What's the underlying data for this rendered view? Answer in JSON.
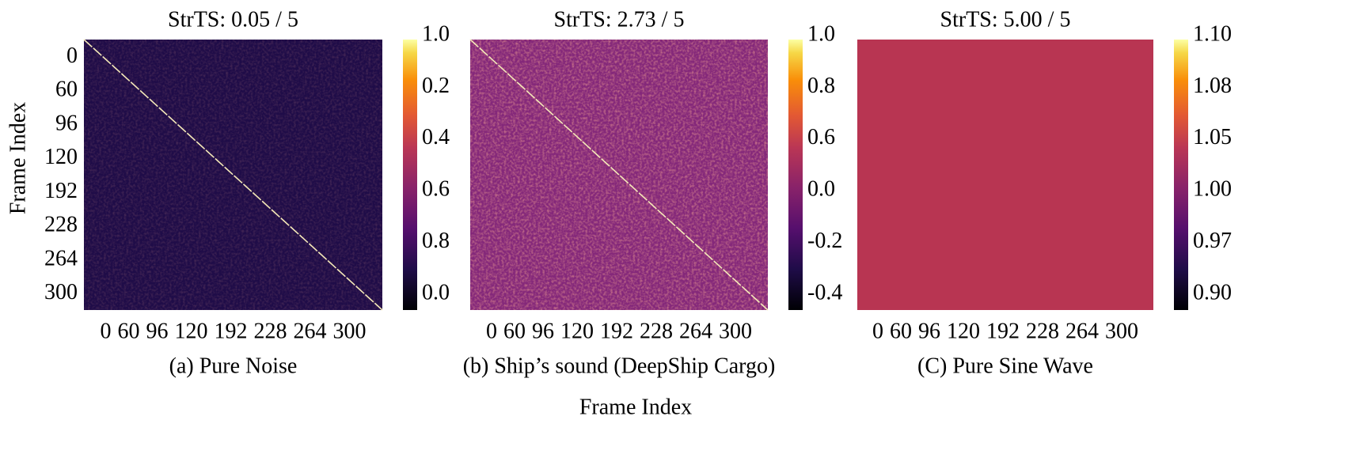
{
  "chart_data": [
    {
      "type": "heatmap",
      "title": "StrTS: 0.05 / 5",
      "caption": "(a) Pure Noise",
      "ylabel": "Frame Index",
      "categories": [
        "0",
        "60",
        "96",
        "120",
        "192",
        "228",
        "264",
        "300"
      ],
      "y_categories": [
        "0",
        "60",
        "96",
        "120",
        "192",
        "228",
        "264",
        "300"
      ],
      "colormap": "inferno",
      "color": "#1f0c48",
      "diagonal": true,
      "texture": true,
      "colorbar_labels": [
        "1.0",
        "0.2",
        "0.4",
        "0.6",
        "0.8",
        "0.0"
      ]
    },
    {
      "type": "heatmap",
      "title": "StrTS: 2.73 / 5",
      "caption": "(b) Ship’s sound (DeepShip Cargo)",
      "xlabel": "Frame Index",
      "categories": [
        "0",
        "60",
        "96",
        "120",
        "192",
        "228",
        "264",
        "300"
      ],
      "colormap": "inferno",
      "color": "#84287a",
      "diagonal": true,
      "texture": true,
      "colorbar_labels": [
        "1.0",
        "0.8",
        "0.6",
        "0.0",
        "-0.2",
        "-0.4"
      ]
    },
    {
      "type": "heatmap",
      "title": "StrTS: 5.00 / 5",
      "caption": "(C) Pure Sine Wave",
      "categories": [
        "0",
        "60",
        "96",
        "120",
        "192",
        "228",
        "264",
        "300"
      ],
      "colormap": "inferno",
      "color": "#b83552",
      "diagonal": false,
      "texture": false,
      "colorbar_labels": [
        "1.10",
        "1.08",
        "1.05",
        "1.00",
        "0.97",
        "0.90"
      ]
    }
  ]
}
